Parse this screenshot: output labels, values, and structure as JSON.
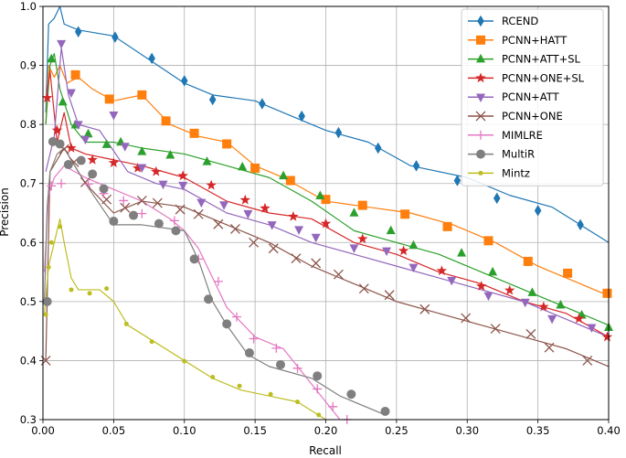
{
  "chart_data": {
    "type": "line",
    "title": "",
    "xlabel": "Recall",
    "ylabel": "Precision",
    "xlim": [
      0.0,
      0.4
    ],
    "ylim": [
      0.3,
      1.0
    ],
    "xticks": [
      "0.00",
      "0.05",
      "0.10",
      "0.15",
      "0.20",
      "0.25",
      "0.30",
      "0.35",
      "0.40"
    ],
    "xtick_values": [
      0.0,
      0.05,
      0.1,
      0.15,
      0.2,
      0.25,
      0.3,
      0.35,
      0.4
    ],
    "yticks": [
      "0.3",
      "0.4",
      "0.5",
      "0.6",
      "0.7",
      "0.8",
      "0.9",
      "1.0"
    ],
    "ytick_values": [
      0.3,
      0.4,
      0.5,
      0.6,
      0.7,
      0.8,
      0.9,
      1.0
    ],
    "grid": true,
    "legend_position": "top-right",
    "series": [
      {
        "name": "RCEND",
        "color": "#1f77b4",
        "marker": "diamond",
        "x": [
          0.002,
          0.004,
          0.008,
          0.012,
          0.015,
          0.025,
          0.05,
          0.075,
          0.1,
          0.12,
          0.15,
          0.18,
          0.2,
          0.23,
          0.26,
          0.3,
          0.33,
          0.36,
          0.38,
          0.4
        ],
        "y": [
          0.82,
          0.97,
          0.98,
          1.0,
          0.97,
          0.96,
          0.95,
          0.91,
          0.87,
          0.85,
          0.84,
          0.81,
          0.79,
          0.77,
          0.73,
          0.71,
          0.68,
          0.66,
          0.63,
          0.6
        ],
        "markers": [
          [
            0.025,
            0.957
          ],
          [
            0.051,
            0.948
          ],
          [
            0.077,
            0.912
          ],
          [
            0.1,
            0.874
          ],
          [
            0.12,
            0.842
          ],
          [
            0.155,
            0.835
          ],
          [
            0.183,
            0.814
          ],
          [
            0.209,
            0.786
          ],
          [
            0.237,
            0.76
          ],
          [
            0.264,
            0.73
          ],
          [
            0.293,
            0.705
          ],
          [
            0.321,
            0.675
          ],
          [
            0.35,
            0.654
          ],
          [
            0.38,
            0.63
          ]
        ]
      },
      {
        "name": "PCNN+HATT",
        "color": "#ff7f0e",
        "marker": "square",
        "x": [
          0.002,
          0.004,
          0.008,
          0.012,
          0.017,
          0.025,
          0.035,
          0.05,
          0.07,
          0.09,
          0.11,
          0.13,
          0.15,
          0.17,
          0.2,
          0.23,
          0.26,
          0.29,
          0.32,
          0.35,
          0.38,
          0.4
        ],
        "y": [
          0.8,
          0.9,
          0.88,
          0.9,
          0.87,
          0.88,
          0.86,
          0.84,
          0.85,
          0.8,
          0.78,
          0.77,
          0.73,
          0.71,
          0.67,
          0.66,
          0.65,
          0.63,
          0.6,
          0.56,
          0.53,
          0.51
        ],
        "markers": [
          [
            0.023,
            0.884
          ],
          [
            0.047,
            0.843
          ],
          [
            0.07,
            0.85
          ],
          [
            0.087,
            0.806
          ],
          [
            0.107,
            0.785
          ],
          [
            0.13,
            0.767
          ],
          [
            0.15,
            0.726
          ],
          [
            0.175,
            0.705
          ],
          [
            0.2,
            0.673
          ],
          [
            0.226,
            0.663
          ],
          [
            0.256,
            0.648
          ],
          [
            0.286,
            0.627
          ],
          [
            0.315,
            0.603
          ],
          [
            0.343,
            0.568
          ],
          [
            0.371,
            0.548
          ],
          [
            0.399,
            0.514
          ]
        ]
      },
      {
        "name": "PCNN+ATT+SL",
        "color": "#2ca02c",
        "marker": "triangle-up",
        "x": [
          0.002,
          0.005,
          0.008,
          0.012,
          0.02,
          0.03,
          0.05,
          0.07,
          0.1,
          0.13,
          0.16,
          0.19,
          0.22,
          0.25,
          0.28,
          0.31,
          0.34,
          0.37,
          0.4
        ],
        "y": [
          0.8,
          0.9,
          0.92,
          0.86,
          0.8,
          0.77,
          0.77,
          0.76,
          0.75,
          0.73,
          0.71,
          0.67,
          0.62,
          0.6,
          0.58,
          0.55,
          0.52,
          0.49,
          0.46
        ],
        "markers": [
          [
            0.006,
            0.911
          ],
          [
            0.014,
            0.838
          ],
          [
            0.023,
            0.799
          ],
          [
            0.032,
            0.784
          ],
          [
            0.045,
            0.766
          ],
          [
            0.055,
            0.77
          ],
          [
            0.07,
            0.754
          ],
          [
            0.09,
            0.748
          ],
          [
            0.116,
            0.737
          ],
          [
            0.141,
            0.728
          ],
          [
            0.17,
            0.713
          ],
          [
            0.196,
            0.679
          ],
          [
            0.22,
            0.65
          ],
          [
            0.246,
            0.62
          ],
          [
            0.262,
            0.595
          ],
          [
            0.296,
            0.582
          ],
          [
            0.318,
            0.55
          ],
          [
            0.346,
            0.515
          ],
          [
            0.366,
            0.494
          ],
          [
            0.381,
            0.477
          ],
          [
            0.4,
            0.456
          ]
        ]
      },
      {
        "name": "PCNN+ONE+SL",
        "color": "#d62728",
        "marker": "star",
        "x": [
          0.002,
          0.005,
          0.01,
          0.015,
          0.02,
          0.03,
          0.05,
          0.07,
          0.1,
          0.13,
          0.16,
          0.19,
          0.22,
          0.25,
          0.28,
          0.31,
          0.34,
          0.37,
          0.4
        ],
        "y": [
          0.84,
          0.89,
          0.77,
          0.82,
          0.76,
          0.75,
          0.74,
          0.73,
          0.71,
          0.67,
          0.65,
          0.64,
          0.6,
          0.58,
          0.55,
          0.53,
          0.5,
          0.48,
          0.44
        ],
        "markers": [
          [
            0.003,
            0.845
          ],
          [
            0.01,
            0.79
          ],
          [
            0.02,
            0.76
          ],
          [
            0.035,
            0.74
          ],
          [
            0.05,
            0.735
          ],
          [
            0.067,
            0.726
          ],
          [
            0.08,
            0.72
          ],
          [
            0.099,
            0.713
          ],
          [
            0.119,
            0.697
          ],
          [
            0.143,
            0.672
          ],
          [
            0.157,
            0.658
          ],
          [
            0.177,
            0.644
          ],
          [
            0.2,
            0.632
          ],
          [
            0.226,
            0.606
          ],
          [
            0.255,
            0.586
          ],
          [
            0.282,
            0.552
          ],
          [
            0.31,
            0.526
          ],
          [
            0.33,
            0.519
          ],
          [
            0.354,
            0.491
          ],
          [
            0.379,
            0.471
          ],
          [
            0.399,
            0.44
          ]
        ]
      },
      {
        "name": "PCNN+ATT",
        "color": "#9467bd",
        "marker": "triangle-down",
        "x": [
          0.002,
          0.008,
          0.013,
          0.018,
          0.025,
          0.04,
          0.06,
          0.08,
          0.1,
          0.13,
          0.16,
          0.19,
          0.22,
          0.25,
          0.28,
          0.31,
          0.34,
          0.37,
          0.4
        ],
        "y": [
          0.72,
          0.78,
          0.93,
          0.85,
          0.8,
          0.79,
          0.72,
          0.7,
          0.69,
          0.65,
          0.63,
          0.6,
          0.58,
          0.56,
          0.54,
          0.52,
          0.5,
          0.47,
          0.44
        ],
        "markers": [
          [
            0.013,
            0.937
          ],
          [
            0.02,
            0.854
          ],
          [
            0.025,
            0.8
          ],
          [
            0.03,
            0.775
          ],
          [
            0.05,
            0.816
          ],
          [
            0.058,
            0.763
          ],
          [
            0.07,
            0.727
          ],
          [
            0.085,
            0.699
          ],
          [
            0.099,
            0.697
          ],
          [
            0.112,
            0.668
          ],
          [
            0.128,
            0.664
          ],
          [
            0.145,
            0.649
          ],
          [
            0.162,
            0.63
          ],
          [
            0.181,
            0.622
          ],
          [
            0.193,
            0.609
          ],
          [
            0.22,
            0.591
          ],
          [
            0.243,
            0.586
          ],
          [
            0.262,
            0.558
          ],
          [
            0.289,
            0.536
          ],
          [
            0.315,
            0.51
          ],
          [
            0.341,
            0.499
          ],
          [
            0.36,
            0.471
          ],
          [
            0.388,
            0.456
          ]
        ]
      },
      {
        "name": "PCNN+ONE",
        "color": "#8c564b",
        "marker": "x",
        "x": [
          0.002,
          0.005,
          0.01,
          0.015,
          0.02,
          0.03,
          0.05,
          0.07,
          0.1,
          0.13,
          0.16,
          0.19,
          0.22,
          0.25,
          0.28,
          0.31,
          0.34,
          0.37,
          0.4
        ],
        "y": [
          0.4,
          0.72,
          0.74,
          0.76,
          0.74,
          0.7,
          0.65,
          0.67,
          0.66,
          0.63,
          0.6,
          0.56,
          0.53,
          0.5,
          0.48,
          0.46,
          0.44,
          0.42,
          0.39
        ],
        "markers": [
          [
            0.002,
            0.4
          ],
          [
            0.015,
            0.758
          ],
          [
            0.022,
            0.736
          ],
          [
            0.03,
            0.702
          ],
          [
            0.045,
            0.673
          ],
          [
            0.058,
            0.659
          ],
          [
            0.07,
            0.671
          ],
          [
            0.081,
            0.667
          ],
          [
            0.097,
            0.656
          ],
          [
            0.11,
            0.648
          ],
          [
            0.124,
            0.631
          ],
          [
            0.136,
            0.623
          ],
          [
            0.149,
            0.6
          ],
          [
            0.163,
            0.59
          ],
          [
            0.179,
            0.573
          ],
          [
            0.193,
            0.565
          ],
          [
            0.209,
            0.546
          ],
          [
            0.227,
            0.522
          ],
          [
            0.245,
            0.511
          ],
          [
            0.27,
            0.487
          ],
          [
            0.299,
            0.472
          ],
          [
            0.32,
            0.454
          ],
          [
            0.345,
            0.445
          ],
          [
            0.358,
            0.422
          ],
          [
            0.385,
            0.4
          ]
        ]
      },
      {
        "name": "MIMLRE",
        "color": "#e377c2",
        "marker": "plus",
        "x": [
          0.001,
          0.004,
          0.008,
          0.015,
          0.03,
          0.05,
          0.07,
          0.09,
          0.1,
          0.11,
          0.12,
          0.13,
          0.15,
          0.17,
          0.19,
          0.2,
          0.21
        ],
        "y": [
          0.55,
          0.68,
          0.71,
          0.73,
          0.71,
          0.69,
          0.67,
          0.64,
          0.62,
          0.59,
          0.54,
          0.49,
          0.44,
          0.42,
          0.36,
          0.33,
          0.3
        ],
        "markers": [
          [
            0.006,
            0.696
          ],
          [
            0.013,
            0.7
          ],
          [
            0.032,
            0.699
          ],
          [
            0.043,
            0.683
          ],
          [
            0.057,
            0.671
          ],
          [
            0.07,
            0.649
          ],
          [
            0.093,
            0.637
          ],
          [
            0.11,
            0.572
          ],
          [
            0.124,
            0.534
          ],
          [
            0.137,
            0.474
          ],
          [
            0.149,
            0.437
          ],
          [
            0.165,
            0.421
          ],
          [
            0.18,
            0.387
          ],
          [
            0.194,
            0.352
          ],
          [
            0.205,
            0.322
          ],
          [
            0.215,
            0.3
          ]
        ]
      },
      {
        "name": "MultiR",
        "color": "#7f7f7f",
        "marker": "circle",
        "x": [
          0.001,
          0.003,
          0.005,
          0.01,
          0.015,
          0.02,
          0.03,
          0.05,
          0.07,
          0.1,
          0.11,
          0.12,
          0.13,
          0.145,
          0.16,
          0.19,
          0.21,
          0.24
        ],
        "y": [
          0.5,
          0.66,
          0.72,
          0.75,
          0.76,
          0.74,
          0.7,
          0.63,
          0.63,
          0.62,
          0.57,
          0.5,
          0.46,
          0.41,
          0.39,
          0.37,
          0.34,
          0.31
        ],
        "markers": [
          [
            0.003,
            0.5
          ],
          [
            0.007,
            0.771
          ],
          [
            0.012,
            0.767
          ],
          [
            0.018,
            0.732
          ],
          [
            0.027,
            0.739
          ],
          [
            0.035,
            0.716
          ],
          [
            0.043,
            0.691
          ],
          [
            0.05,
            0.636
          ],
          [
            0.064,
            0.646
          ],
          [
            0.082,
            0.632
          ],
          [
            0.094,
            0.62
          ],
          [
            0.107,
            0.572
          ],
          [
            0.117,
            0.504
          ],
          [
            0.13,
            0.462
          ],
          [
            0.146,
            0.413
          ],
          [
            0.168,
            0.393
          ],
          [
            0.194,
            0.374
          ],
          [
            0.218,
            0.343
          ],
          [
            0.242,
            0.314
          ]
        ]
      },
      {
        "name": "Mintz",
        "color": "#bcbd22",
        "marker": "point",
        "x": [
          0.001,
          0.004,
          0.008,
          0.012,
          0.015,
          0.02,
          0.025,
          0.04,
          0.05,
          0.06,
          0.08,
          0.1,
          0.12,
          0.14,
          0.16,
          0.18,
          0.2
        ],
        "y": [
          0.48,
          0.56,
          0.6,
          0.64,
          0.6,
          0.54,
          0.52,
          0.52,
          0.5,
          0.46,
          0.43,
          0.4,
          0.37,
          0.35,
          0.34,
          0.33,
          0.3
        ],
        "markers": [
          [
            0.002,
            0.478
          ],
          [
            0.004,
            0.558
          ],
          [
            0.006,
            0.6
          ],
          [
            0.012,
            0.627
          ],
          [
            0.02,
            0.52
          ],
          [
            0.033,
            0.514
          ],
          [
            0.045,
            0.522
          ],
          [
            0.059,
            0.462
          ],
          [
            0.077,
            0.432
          ],
          [
            0.1,
            0.399
          ],
          [
            0.12,
            0.372
          ],
          [
            0.139,
            0.357
          ],
          [
            0.161,
            0.343
          ],
          [
            0.18,
            0.33
          ],
          [
            0.195,
            0.308
          ]
        ]
      }
    ]
  }
}
